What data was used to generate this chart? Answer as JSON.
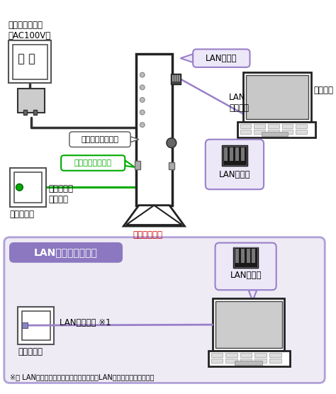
{
  "bg_color": "#ffffff",
  "bottom_section_bg": "#eeebf5",
  "bottom_border_color": "#aа99cc",
  "title_box_color": "#8b78c0",
  "title_text": "LAN配線方式の場合",
  "title_text_color": "#ffffff",
  "green_color": "#00aa00",
  "purple_color": "#9980c8",
  "purple_line": "#9980c8",
  "black_color": "#000000",
  "red_color": "#cc0000",
  "gray_color": "#888888",
  "light_gray": "#cccccc",
  "dark_gray": "#444444",
  "labels": {
    "dengen_konsento": "電源コンセント\n（AC100V）",
    "dengen_adaputa": "電源アダプタ端子",
    "hikari_nyuriguchi": "光ファイバ導入口",
    "hikari_cable": "光ファイバ\nケーブル",
    "kabe_panel_top": "壁のパネル",
    "kabe_panel_bottom": "壁のパネル",
    "lan_port_top_right": "LANポート",
    "lan_cable_top": "LAN\nケーブル",
    "lan_port_mid_right": "LANポート",
    "pasokon": "パソコン",
    "kaisen_terminal": "回線終端装置",
    "lan_port_bottom": "LANポート",
    "lan_cable_bottom": "LANケーブル ※1",
    "footnote": "※１ LAN配線方式の場合、直接パソコンのLANポートへつなげます。"
  }
}
